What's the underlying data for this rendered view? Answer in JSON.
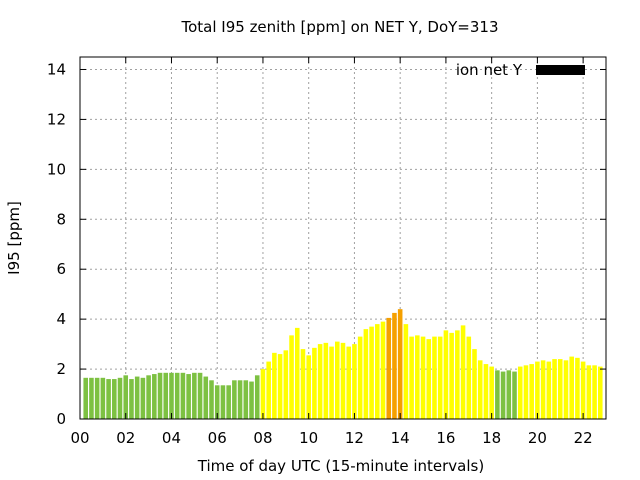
{
  "chart_data": {
    "type": "bar",
    "title": "Total I95 zenith [ppm] on NET Y, DoY=313",
    "xlabel": "Time of day UTC (15-minute intervals)",
    "ylabel": "I95 [ppm]",
    "xlim": [
      0,
      23
    ],
    "ylim": [
      0,
      14.5
    ],
    "x_ticks": [
      "00",
      "02",
      "04",
      "06",
      "08",
      "10",
      "12",
      "14",
      "16",
      "18",
      "20",
      "22"
    ],
    "y_ticks": [
      "0",
      "2",
      "4",
      "6",
      "8",
      "10",
      "12",
      "14"
    ],
    "grid": true,
    "legend": {
      "label": "ion net Y",
      "position": "top-right",
      "color": "#000000"
    },
    "colors": {
      "green": "#7dc142",
      "yellow": "#ffff00",
      "orange": "#f5a000"
    },
    "color_thresholds": {
      "yellow_from": 2.0,
      "orange_from": 4.0
    },
    "bars": [
      {
        "x": 0.25,
        "v": 1.65
      },
      {
        "x": 0.5,
        "v": 1.65
      },
      {
        "x": 0.75,
        "v": 1.65
      },
      {
        "x": 1.0,
        "v": 1.65
      },
      {
        "x": 1.25,
        "v": 1.6
      },
      {
        "x": 1.5,
        "v": 1.6
      },
      {
        "x": 1.75,
        "v": 1.65
      },
      {
        "x": 2.0,
        "v": 1.75
      },
      {
        "x": 2.25,
        "v": 1.6
      },
      {
        "x": 2.5,
        "v": 1.7
      },
      {
        "x": 2.75,
        "v": 1.65
      },
      {
        "x": 3.0,
        "v": 1.75
      },
      {
        "x": 3.25,
        "v": 1.8
      },
      {
        "x": 3.5,
        "v": 1.85
      },
      {
        "x": 3.75,
        "v": 1.85
      },
      {
        "x": 4.0,
        "v": 1.85
      },
      {
        "x": 4.25,
        "v": 1.85
      },
      {
        "x": 4.5,
        "v": 1.85
      },
      {
        "x": 4.75,
        "v": 1.8
      },
      {
        "x": 5.0,
        "v": 1.85
      },
      {
        "x": 5.25,
        "v": 1.85
      },
      {
        "x": 5.5,
        "v": 1.7
      },
      {
        "x": 5.75,
        "v": 1.55
      },
      {
        "x": 6.0,
        "v": 1.35
      },
      {
        "x": 6.25,
        "v": 1.35
      },
      {
        "x": 6.5,
        "v": 1.35
      },
      {
        "x": 6.75,
        "v": 1.55
      },
      {
        "x": 7.0,
        "v": 1.55
      },
      {
        "x": 7.25,
        "v": 1.55
      },
      {
        "x": 7.5,
        "v": 1.5
      },
      {
        "x": 7.75,
        "v": 1.75
      },
      {
        "x": 8.0,
        "v": 2.0
      },
      {
        "x": 8.25,
        "v": 2.3
      },
      {
        "x": 8.5,
        "v": 2.65
      },
      {
        "x": 8.75,
        "v": 2.6
      },
      {
        "x": 9.0,
        "v": 2.75
      },
      {
        "x": 9.25,
        "v": 3.35
      },
      {
        "x": 9.5,
        "v": 3.65
      },
      {
        "x": 9.75,
        "v": 2.8
      },
      {
        "x": 10.0,
        "v": 2.55
      },
      {
        "x": 10.25,
        "v": 2.85
      },
      {
        "x": 10.5,
        "v": 3.0
      },
      {
        "x": 10.75,
        "v": 3.05
      },
      {
        "x": 11.0,
        "v": 2.9
      },
      {
        "x": 11.25,
        "v": 3.1
      },
      {
        "x": 11.5,
        "v": 3.05
      },
      {
        "x": 11.75,
        "v": 2.9
      },
      {
        "x": 12.0,
        "v": 3.0
      },
      {
        "x": 12.25,
        "v": 3.3
      },
      {
        "x": 12.5,
        "v": 3.6
      },
      {
        "x": 12.75,
        "v": 3.7
      },
      {
        "x": 13.0,
        "v": 3.8
      },
      {
        "x": 13.25,
        "v": 3.9
      },
      {
        "x": 13.5,
        "v": 4.05
      },
      {
        "x": 13.75,
        "v": 4.25
      },
      {
        "x": 14.0,
        "v": 4.4
      },
      {
        "x": 14.25,
        "v": 3.8
      },
      {
        "x": 14.5,
        "v": 3.3
      },
      {
        "x": 14.75,
        "v": 3.35
      },
      {
        "x": 15.0,
        "v": 3.3
      },
      {
        "x": 15.25,
        "v": 3.2
      },
      {
        "x": 15.5,
        "v": 3.3
      },
      {
        "x": 15.75,
        "v": 3.3
      },
      {
        "x": 16.0,
        "v": 3.55
      },
      {
        "x": 16.25,
        "v": 3.45
      },
      {
        "x": 16.5,
        "v": 3.55
      },
      {
        "x": 16.75,
        "v": 3.75
      },
      {
        "x": 17.0,
        "v": 3.3
      },
      {
        "x": 17.25,
        "v": 2.8
      },
      {
        "x": 17.5,
        "v": 2.35
      },
      {
        "x": 17.75,
        "v": 2.2
      },
      {
        "x": 18.0,
        "v": 2.1
      },
      {
        "x": 18.25,
        "v": 1.95
      },
      {
        "x": 18.5,
        "v": 1.9
      },
      {
        "x": 18.75,
        "v": 1.95
      },
      {
        "x": 19.0,
        "v": 1.9
      },
      {
        "x": 19.25,
        "v": 2.1
      },
      {
        "x": 19.5,
        "v": 2.15
      },
      {
        "x": 19.75,
        "v": 2.2
      },
      {
        "x": 20.0,
        "v": 2.3
      },
      {
        "x": 20.25,
        "v": 2.35
      },
      {
        "x": 20.5,
        "v": 2.3
      },
      {
        "x": 20.75,
        "v": 2.4
      },
      {
        "x": 21.0,
        "v": 2.4
      },
      {
        "x": 21.25,
        "v": 2.35
      },
      {
        "x": 21.5,
        "v": 2.5
      },
      {
        "x": 21.75,
        "v": 2.45
      },
      {
        "x": 22.0,
        "v": 2.3
      },
      {
        "x": 22.25,
        "v": 2.15
      },
      {
        "x": 22.5,
        "v": 2.15
      },
      {
        "x": 22.75,
        "v": 2.1
      }
    ]
  }
}
